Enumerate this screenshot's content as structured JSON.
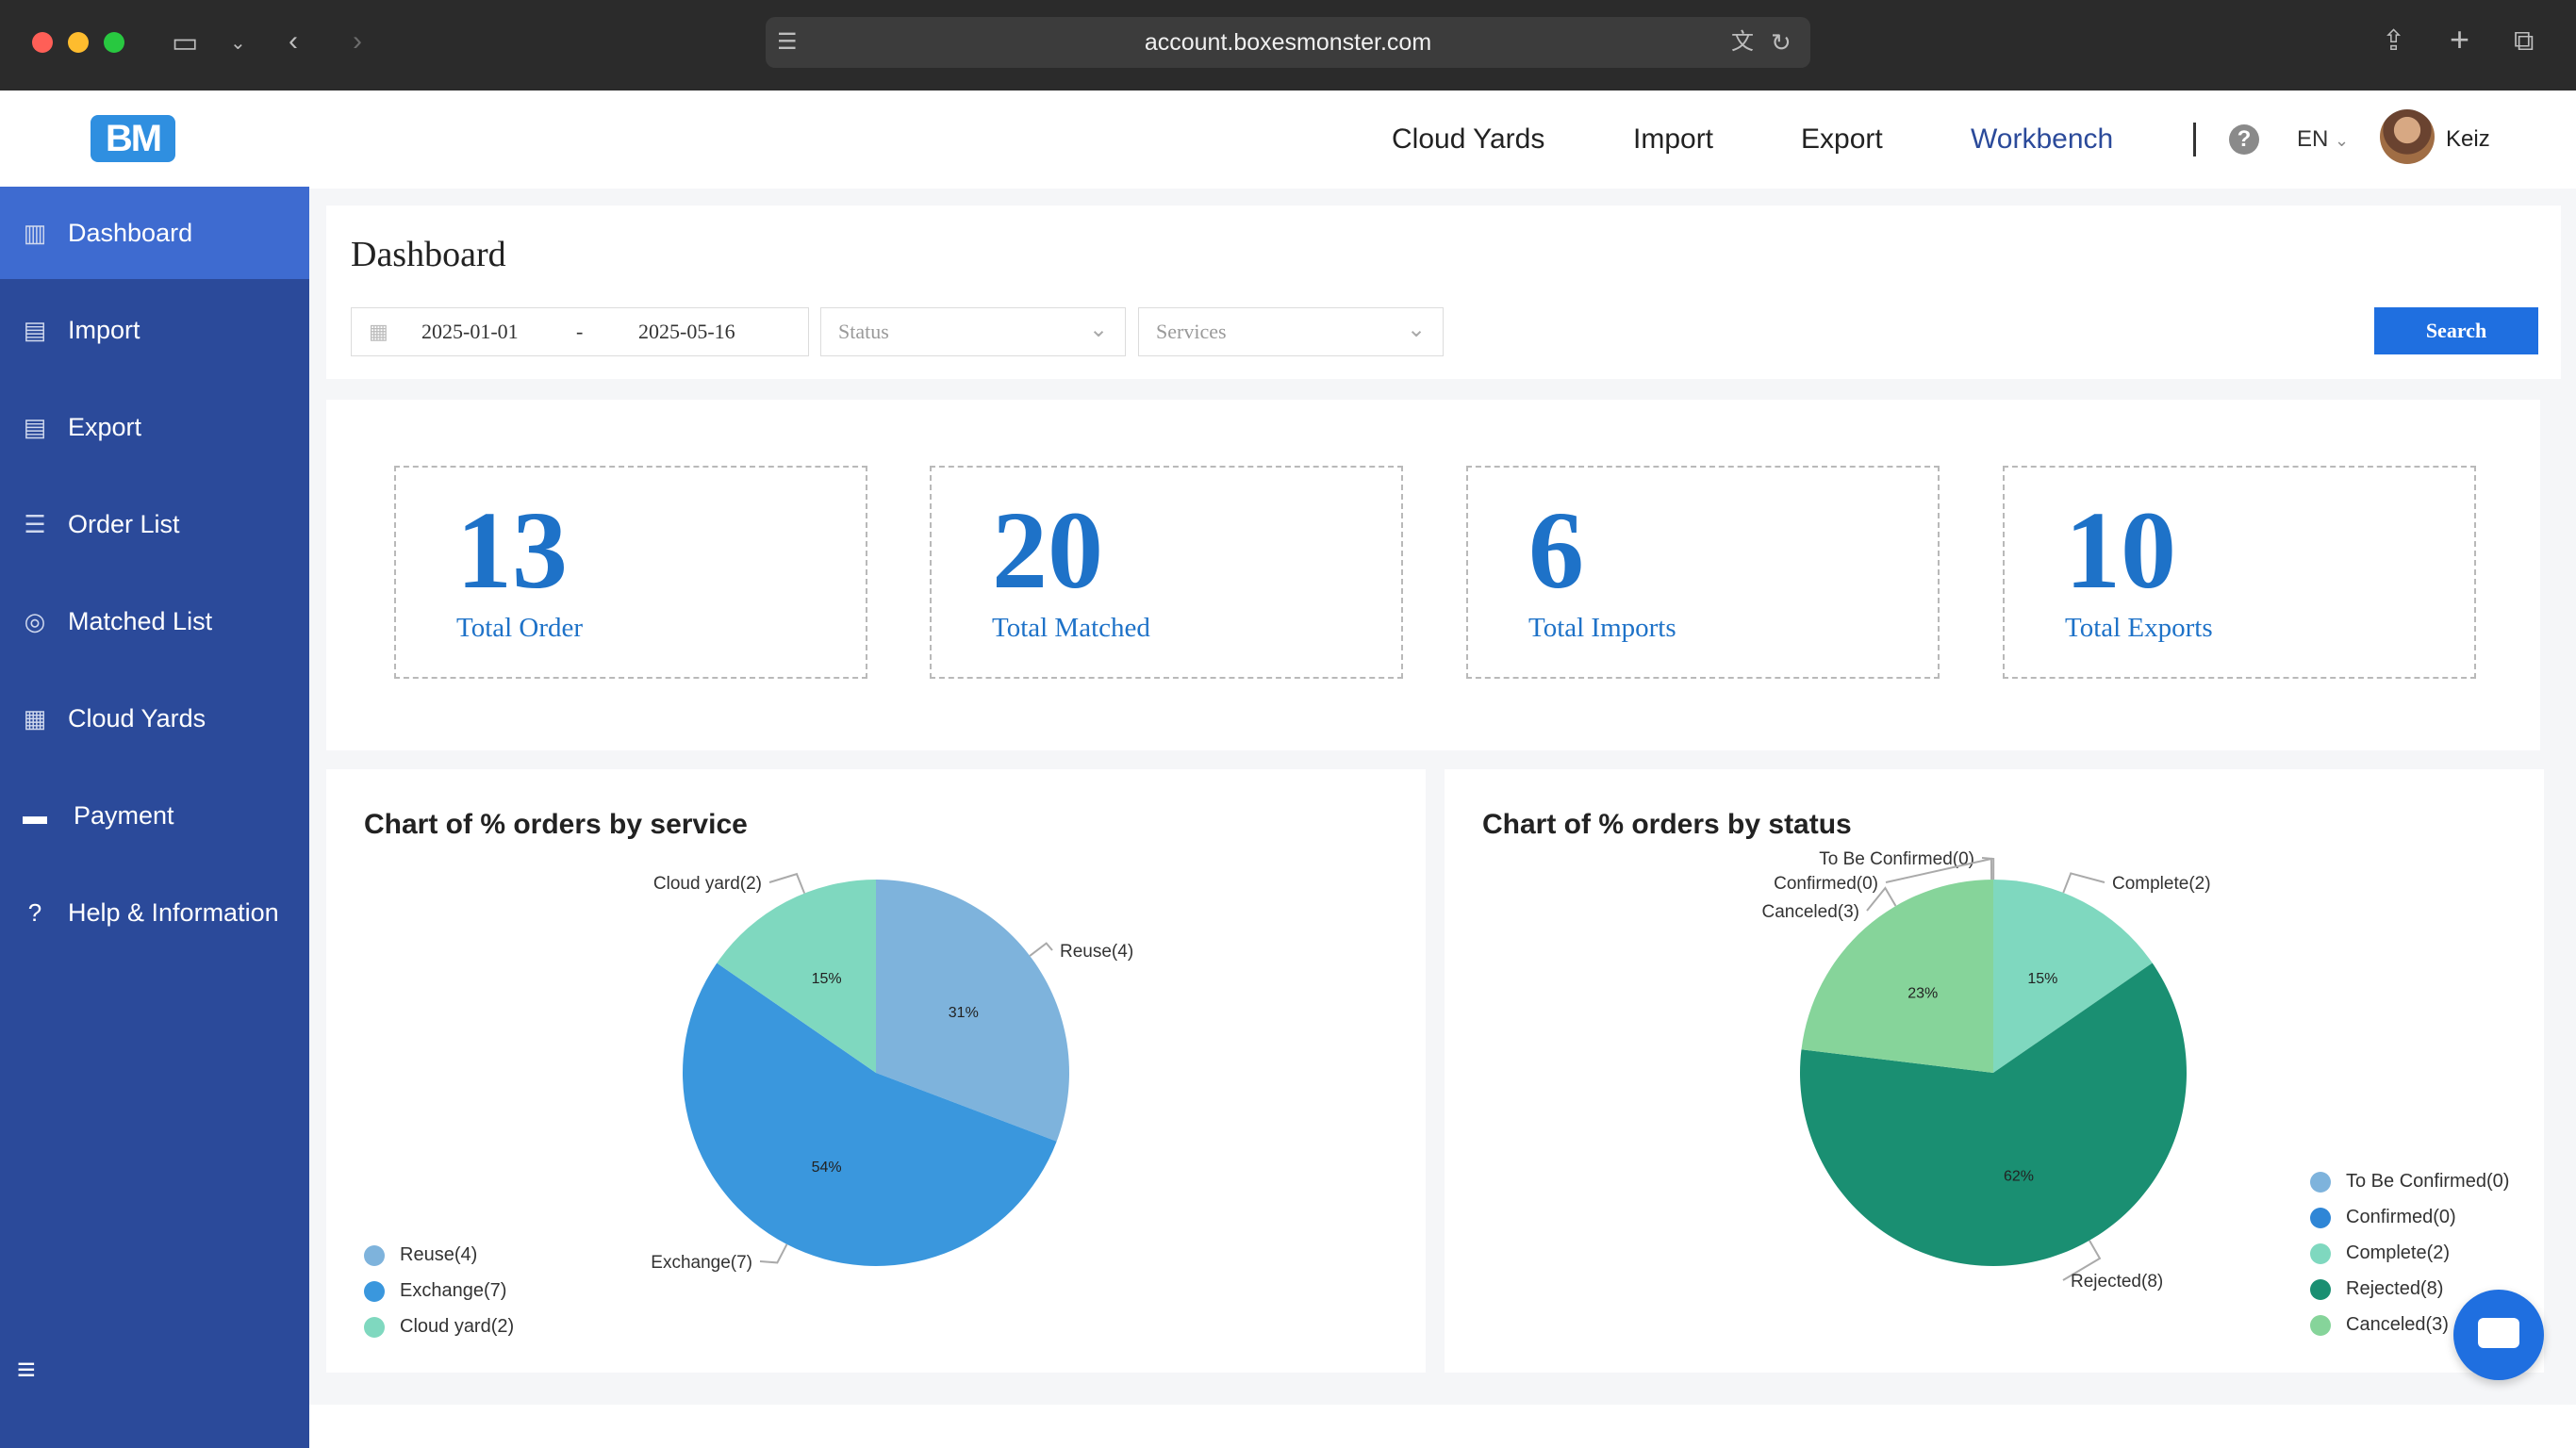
{
  "browser": {
    "url": "account.boxesmonster.com"
  },
  "header": {
    "logo": "BM",
    "nav": [
      "Cloud Yards",
      "Import",
      "Export",
      "Workbench"
    ],
    "lang": "EN",
    "user": "Keiz"
  },
  "sidebar": {
    "items": [
      {
        "label": "Dashboard"
      },
      {
        "label": "Import"
      },
      {
        "label": "Export"
      },
      {
        "label": "Order List"
      },
      {
        "label": "Matched List"
      },
      {
        "label": "Cloud Yards"
      },
      {
        "label": "Payment"
      },
      {
        "label": "Help & Information"
      }
    ]
  },
  "page": {
    "title": "Dashboard"
  },
  "filters": {
    "date_from": "2025-01-01",
    "date_sep": "-",
    "date_to": "2025-05-16",
    "status_placeholder": "Status",
    "services_placeholder": "Services",
    "search_label": "Search"
  },
  "stats": [
    {
      "value": "13",
      "label": "Total Order"
    },
    {
      "value": "20",
      "label": "Total Matched"
    },
    {
      "value": "6",
      "label": "Total Imports"
    },
    {
      "value": "10",
      "label": "Total Exports"
    }
  ],
  "colors": {
    "sidebar": "#2b4a9a",
    "accent": "#1f6fe0",
    "stat_text": "#1e72c8"
  },
  "chart_data": [
    {
      "type": "pie",
      "title": "Chart of % orders by service",
      "legend": "bottom-left",
      "slices": [
        {
          "name": "Reuse(4)",
          "value": 4,
          "pct": "31%",
          "color": "#7eb3dc"
        },
        {
          "name": "Exchange(7)",
          "value": 7,
          "pct": "54%",
          "color": "#3a97dd"
        },
        {
          "name": "Cloud yard(2)",
          "value": 2,
          "pct": "15%",
          "color": "#7fd8bf"
        }
      ]
    },
    {
      "type": "pie",
      "title": "Chart of % orders by status",
      "legend": "bottom-right",
      "slices": [
        {
          "name": "To Be Confirmed(0)",
          "value": 0,
          "pct": "0%",
          "color": "#7eb3dc"
        },
        {
          "name": "Confirmed(0)",
          "value": 0,
          "pct": "",
          "color": "#2f86d6"
        },
        {
          "name": "Complete(2)",
          "value": 2,
          "pct": "15%",
          "color": "#7fd8bf"
        },
        {
          "name": "Rejected(8)",
          "value": 8,
          "pct": "62%",
          "color": "#1a8f72"
        },
        {
          "name": "Canceled(3)",
          "value": 3,
          "pct": "23%",
          "color": "#86d49a"
        }
      ]
    }
  ]
}
